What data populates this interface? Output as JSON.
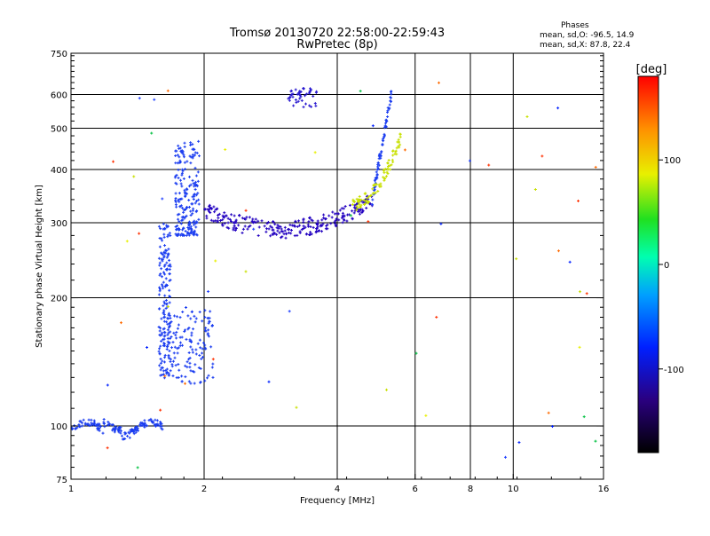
{
  "chart_data": {
    "type": "scatter",
    "title": "Tromsø 20130720 22:58:00-22:59:43",
    "subtitle": "RwPretec (8p)",
    "xlabel": "Frequency [MHz]",
    "ylabel": "Stationary phase Virtual Height [km]",
    "x_scale": "log",
    "y_scale": "log",
    "xlim": [
      1,
      16
    ],
    "ylim": [
      75,
      750
    ],
    "x_ticks": [
      1,
      2,
      4,
      6,
      8,
      10,
      16
    ],
    "y_ticks": [
      75,
      100,
      200,
      300,
      400,
      500,
      600,
      750
    ],
    "x_gridlines": [
      2,
      4,
      6,
      8,
      10
    ],
    "y_gridlines": [
      100,
      200,
      300,
      400,
      500,
      600
    ],
    "grid": true,
    "stats": {
      "heading": "Phases",
      "line1": "mean, sd,O: -96.5, 14.9",
      "line2": "mean, sd,X:  87.8, 22.4"
    },
    "colorbar": {
      "label": "[deg]",
      "range": [
        -180,
        180
      ],
      "ticks": [
        100,
        0,
        -100
      ]
    },
    "groups": [
      {
        "name": "ground_trace",
        "x_range": [
          1.0,
          1.62
        ],
        "y_range": [
          95,
          106
        ],
        "color": "#1a3cf0",
        "points": 150
      },
      {
        "name": "E_region_vertical",
        "x_range": [
          1.58,
          1.68
        ],
        "y_range": [
          130,
          300
        ],
        "color": "#1a3cf0",
        "points": 150
      },
      {
        "name": "F_cusp_column",
        "x_range": [
          1.72,
          1.95
        ],
        "y_range": [
          280,
          470
        ],
        "color": "#1a3cf0",
        "points": 200
      },
      {
        "name": "F_trace_main",
        "x_range": [
          2.0,
          4.8
        ],
        "y_range": [
          285,
          340
        ],
        "color": "#2200c0",
        "points": 260
      },
      {
        "name": "F_trace_upper",
        "x_range": [
          4.8,
          5.3
        ],
        "y_range": [
          330,
          620
        ],
        "color": "#1a3cf0",
        "points": 70
      },
      {
        "name": "X_trace",
        "x_range": [
          4.3,
          5.6
        ],
        "y_range": [
          320,
          500
        ],
        "color": "#c8e000",
        "points": 90
      },
      {
        "name": "Es_layer",
        "x_range": [
          1.62,
          2.1
        ],
        "y_range": [
          125,
          190
        ],
        "color": "#1a3cf0",
        "points": 150
      },
      {
        "name": "oblique_cluster",
        "x_range": [
          3.1,
          3.6
        ],
        "y_range": [
          560,
          620
        ],
        "color": "#2a1ad0",
        "points": 45
      },
      {
        "name": "scattered_noise",
        "x_range": [
          1.2,
          16
        ],
        "y_range": [
          78,
          640
        ],
        "color": "mixed",
        "points": 60
      }
    ]
  }
}
